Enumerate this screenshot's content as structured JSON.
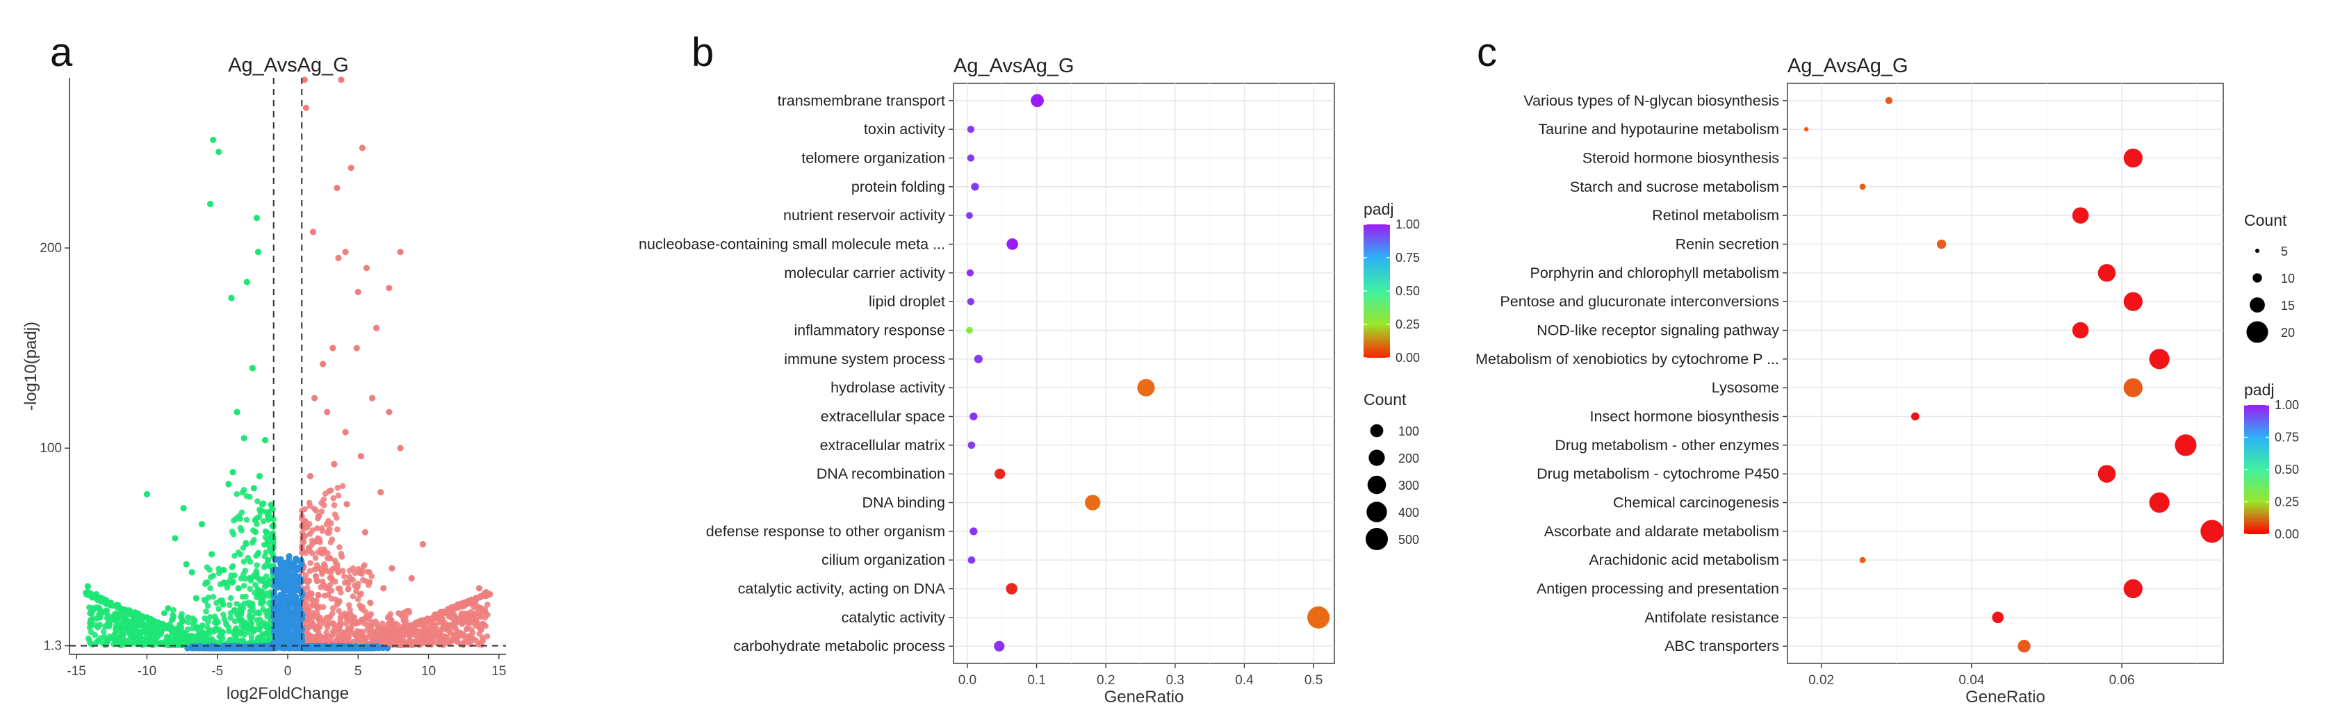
{
  "chart_data": [
    {
      "panel_label": "a",
      "type": "scatter",
      "subtype": "volcano",
      "title": "Ag_AvsAg_G",
      "xlabel": "log2FoldChange",
      "ylabel": "-log10(padj)",
      "xlim": [
        -15.5,
        15.5
      ],
      "ylim": [
        -3,
        285
      ],
      "x_ticks": [
        -15,
        -10,
        -5,
        0,
        5,
        10,
        15
      ],
      "x_tick_labels": [
        "-15",
        "-10",
        "-5",
        "0",
        "5",
        "10",
        "15"
      ],
      "y_ticks": [
        1.3,
        100,
        200
      ],
      "y_tick_labels": [
        "1.3",
        "100",
        "200"
      ],
      "fold_change_cutoffs": [
        -1,
        1
      ],
      "padj_cutoff": 1.3,
      "colors": {
        "down": "#1ee676",
        "up": "#ef7f7f",
        "not_significant": "#2c8fe0"
      },
      "series": [
        {
          "name": "down",
          "points": [
            [
              -14.2,
              31
            ],
            [
              -13.6,
              27
            ],
            [
              -12.9,
              24
            ],
            [
              -13.2,
              18
            ],
            [
              -12.2,
              15
            ],
            [
              -10,
              77
            ],
            [
              -8,
              55
            ],
            [
              -7.4,
              70
            ],
            [
              -7.2,
              42
            ],
            [
              -6.8,
              38
            ],
            [
              -6.1,
              62
            ],
            [
              -5.4,
              47
            ],
            [
              -5.3,
              254
            ],
            [
              -4.9,
              248
            ],
            [
              -4.2,
              82
            ],
            [
              -3.9,
              88
            ],
            [
              -3.6,
              118
            ],
            [
              -3.1,
              105
            ],
            [
              -2.9,
              183
            ],
            [
              -2.5,
              140
            ],
            [
              -2.4,
              80
            ],
            [
              -2.3,
              64
            ],
            [
              -2.1,
              198
            ],
            [
              -2,
              86
            ],
            [
              -1.8,
              72
            ],
            [
              -1.6,
              104
            ],
            [
              -1.5,
              58
            ],
            [
              -1.4,
              44
            ],
            [
              -5.5,
              222
            ],
            [
              -4,
              175
            ],
            [
              -2.2,
              215
            ],
            [
              -3.5,
              30
            ],
            [
              -2.7,
              35
            ],
            [
              -6.5,
              25
            ],
            [
              -8.5,
              20
            ],
            [
              -4.6,
              22
            ],
            [
              -3.3,
              18
            ],
            [
              -1.7,
              26
            ],
            [
              -1.3,
              33
            ]
          ]
        },
        {
          "name": "up",
          "points": [
            [
              1.2,
              284
            ],
            [
              1.3,
              270
            ],
            [
              3.8,
              284
            ],
            [
              4.5,
              240
            ],
            [
              5.3,
              250
            ],
            [
              3.5,
              230
            ],
            [
              1.8,
              208
            ],
            [
              4.1,
              198
            ],
            [
              3.6,
              195
            ],
            [
              7.2,
              180
            ],
            [
              8,
              198
            ],
            [
              5.6,
              190
            ],
            [
              5,
              178
            ],
            [
              6.3,
              160
            ],
            [
              3.2,
              150
            ],
            [
              4.9,
              150
            ],
            [
              2.5,
              142
            ],
            [
              1.9,
              125
            ],
            [
              2.8,
              118
            ],
            [
              6,
              125
            ],
            [
              7.2,
              118
            ],
            [
              4.1,
              108
            ],
            [
              8,
              100
            ],
            [
              5.2,
              96
            ],
            [
              3.3,
              92
            ],
            [
              1.6,
              86
            ],
            [
              6.6,
              78
            ],
            [
              4.2,
              72
            ],
            [
              2.2,
              66
            ],
            [
              9.6,
              52
            ],
            [
              13.6,
              30
            ],
            [
              14.1,
              28
            ],
            [
              12.1,
              22
            ],
            [
              11.2,
              18
            ],
            [
              10.4,
              16
            ],
            [
              7.4,
              40
            ],
            [
              5.5,
              58
            ],
            [
              3,
              45
            ],
            [
              2,
              36
            ],
            [
              1.5,
              50
            ],
            [
              8.8,
              35
            ],
            [
              6.8,
              30
            ]
          ]
        },
        {
          "name": "not_significant",
          "points": [
            [
              -0.9,
              38
            ],
            [
              -0.5,
              42
            ],
            [
              0.1,
              46
            ],
            [
              0.6,
              44
            ],
            [
              0.9,
              40
            ],
            [
              -0.2,
              30
            ],
            [
              0.4,
              28
            ]
          ]
        }
      ]
    },
    {
      "panel_label": "b",
      "type": "scatter",
      "subtype": "dot plot (GO enrichment)",
      "title": "Ag_AvsAg_G",
      "xlabel": "GeneRatio",
      "ylabel": "",
      "xlim": [
        -0.02,
        0.53
      ],
      "x_ticks": [
        0,
        0.1,
        0.2,
        0.3,
        0.4,
        0.5
      ],
      "x_tick_labels": [
        "0.0",
        "0.1",
        "0.2",
        "0.3",
        "0.4",
        "0.5"
      ],
      "categories": [
        "transmembrane transport",
        "toxin activity",
        "telomere organization",
        "protein folding",
        "nutrient reservoir activity",
        "nucleobase-containing small molecule meta ...",
        "molecular carrier activity",
        "lipid droplet",
        "inflammatory response",
        "immune system process",
        "hydrolase activity",
        "extracellular space",
        "extracellular matrix",
        "DNA recombination",
        "DNA binding",
        "defense response to other organism",
        "cilium organization",
        "catalytic activity, acting on DNA",
        "catalytic activity",
        "carbohydrate metabolic process"
      ],
      "gene_ratio": [
        0.101,
        0.005,
        0.005,
        0.011,
        0.003,
        0.065,
        0.004,
        0.005,
        0.003,
        0.016,
        0.258,
        0.009,
        0.006,
        0.047,
        0.181,
        0.009,
        0.006,
        0.064,
        0.507,
        0.046
      ],
      "count": [
        100,
        5,
        5,
        10,
        3,
        65,
        4,
        5,
        3,
        15,
        255,
        9,
        6,
        45,
        180,
        9,
        6,
        63,
        500,
        45
      ],
      "padj": [
        1.0,
        0.95,
        0.95,
        0.95,
        0.95,
        1.0,
        0.97,
        0.95,
        0.3,
        0.95,
        0.04,
        0.97,
        0.95,
        0.0,
        0.04,
        0.97,
        0.95,
        0.0,
        0.04,
        0.97
      ],
      "legend_color": {
        "title": "padj",
        "ticks": [
          1.0,
          0.75,
          0.5,
          0.25,
          0.0
        ],
        "tick_labels": [
          "1.00",
          "0.75",
          "0.50",
          "0.25",
          "0.00"
        ],
        "colors": [
          "#9b1df5",
          "#2ab3f5",
          "#40f0a0",
          "#9be62a",
          "#ff2000"
        ]
      },
      "legend_size": {
        "title": "Count",
        "values": [
          100,
          200,
          300,
          400,
          500
        ],
        "labels": [
          "100",
          "200",
          "300",
          "400",
          "500"
        ]
      }
    },
    {
      "panel_label": "c",
      "type": "scatter",
      "subtype": "dot plot (KEGG enrichment)",
      "title": "Ag_AvsAg_G",
      "xlabel": "GeneRatio",
      "ylabel": "",
      "xlim": [
        0.0155,
        0.0735
      ],
      "x_ticks": [
        0.02,
        0.04,
        0.06
      ],
      "x_tick_labels": [
        "0.02",
        "0.04",
        "0.06"
      ],
      "categories": [
        "Various types of N-glycan biosynthesis",
        "Taurine and hypotaurine metabolism",
        "Steroid hormone biosynthesis",
        "Starch and sucrose metabolism",
        "Retinol metabolism",
        "Renin secretion",
        "Porphyrin and chlorophyll metabolism",
        "Pentose and glucuronate interconversions",
        "NOD-like receptor signaling pathway",
        "Metabolism of xenobiotics by cytochrome P ...",
        "Lysosome",
        "Insect hormone biosynthesis",
        "Drug metabolism - other enzymes",
        "Drug metabolism - cytochrome P450",
        "Chemical carcinogenesis",
        "Ascorbate and aldarate metabolism",
        "Arachidonic acid metabolism",
        "Antigen processing and presentation",
        "Antifolate resistance",
        "ABC transporters"
      ],
      "gene_ratio": [
        0.029,
        0.018,
        0.0615,
        0.0255,
        0.0545,
        0.036,
        0.058,
        0.0615,
        0.0545,
        0.065,
        0.0615,
        0.0325,
        0.0685,
        0.058,
        0.065,
        0.072,
        0.0255,
        0.0615,
        0.0435,
        0.047
      ],
      "count": [
        8,
        5,
        18,
        7,
        16,
        10,
        17,
        18,
        16,
        19,
        18,
        9,
        20,
        17,
        19,
        21,
        7,
        18,
        12,
        13
      ],
      "padj": [
        0.05,
        0.05,
        0.0,
        0.05,
        0.0,
        0.05,
        0.0,
        0.0,
        0.0,
        0.0,
        0.05,
        0.0,
        0.0,
        0.0,
        0.0,
        0.0,
        0.05,
        0.0,
        0.0,
        0.05
      ],
      "legend_size": {
        "title": "Count",
        "values": [
          5,
          10,
          15,
          20
        ],
        "labels": [
          "5",
          "10",
          "15",
          "20"
        ]
      },
      "legend_color": {
        "title": "padj",
        "ticks": [
          1.0,
          0.75,
          0.5,
          0.25,
          0.0
        ],
        "tick_labels": [
          "1.00",
          "0.75",
          "0.50",
          "0.25",
          "0.00"
        ],
        "colors": [
          "#9b1df5",
          "#2ab3f5",
          "#40f0a0",
          "#9be62a",
          "#ff2000"
        ]
      }
    }
  ]
}
